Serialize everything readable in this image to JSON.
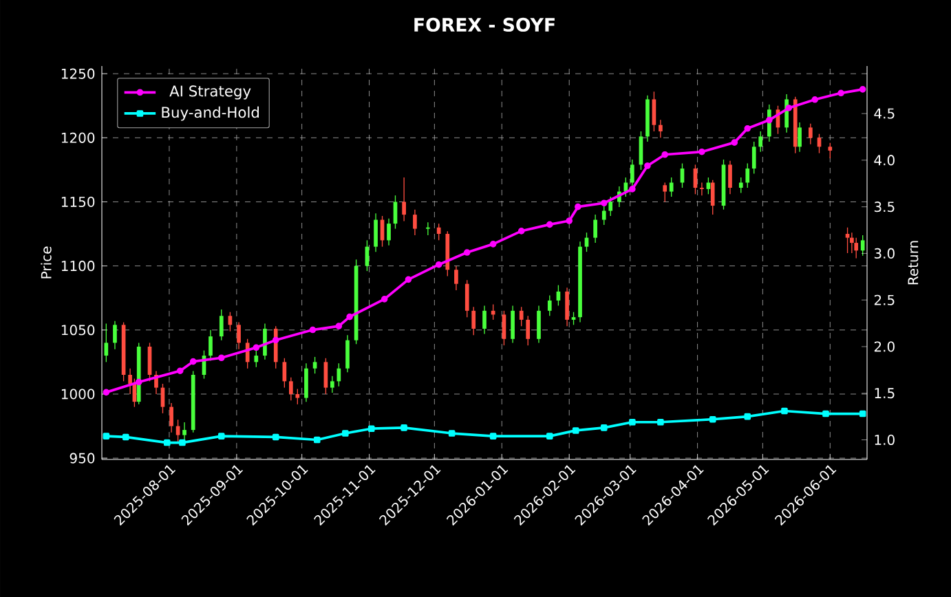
{
  "chart_data": {
    "type": "candlestick",
    "title": "FOREX - SOYF",
    "ylabel": "Price",
    "y2label": "Return",
    "xlim": [
      "2025-07-01",
      "2026-06-18"
    ],
    "xticks": [
      "2025-08-01",
      "2025-09-01",
      "2025-10-01",
      "2025-11-01",
      "2025-12-01",
      "2026-01-01",
      "2026-02-01",
      "2026-03-01",
      "2026-04-01",
      "2026-05-01",
      "2026-06-01"
    ],
    "ylim": [
      949,
      1256
    ],
    "yticks": [
      950,
      1000,
      1050,
      1100,
      1150,
      1200,
      1250
    ],
    "y2lim": [
      0.79,
      5.01
    ],
    "y2ticks": [
      {
        "value": 1,
        "label": "1.0"
      },
      1.5,
      {
        "value": 2,
        "label": "2.0"
      },
      2.5,
      {
        "value": 3,
        "label": "3.0"
      },
      3.5,
      {
        "value": 4,
        "label": "4.0"
      },
      4.5
    ],
    "grid": true,
    "legend": "top left",
    "x": [
      "2025-07-03",
      "2025-07-07",
      "2025-07-11",
      "2025-07-14",
      "2025-07-16",
      "2025-07-18",
      "2025-07-23",
      "2025-07-26",
      "2025-07-29",
      "2025-08-02",
      "2025-08-05",
      "2025-08-08",
      "2025-08-12",
      "2025-08-17",
      "2025-08-20",
      "2025-08-25",
      "2025-08-29",
      "2025-09-02",
      "2025-09-06",
      "2025-09-10",
      "2025-09-14",
      "2025-09-19",
      "2025-09-23",
      "2025-09-26",
      "2025-09-29",
      "2025-10-03",
      "2025-10-07",
      "2025-10-12",
      "2025-10-15",
      "2025-10-18",
      "2025-10-22",
      "2025-10-26",
      "2025-10-31",
      "2025-11-04",
      "2025-11-07",
      "2025-11-10",
      "2025-11-13",
      "2025-11-17",
      "2025-11-22",
      "2025-11-28",
      "2025-12-03",
      "2025-12-07",
      "2025-12-11",
      "2025-12-16",
      "2025-12-19",
      "2025-12-24",
      "2025-12-28",
      "2026-01-02",
      "2026-01-06",
      "2026-01-10",
      "2026-01-13",
      "2026-01-18",
      "2026-01-23",
      "2026-01-27",
      "2026-01-31",
      "2026-02-03",
      "2026-02-06",
      "2026-02-09",
      "2026-02-13",
      "2026-02-17",
      "2026-02-20",
      "2026-02-24",
      "2026-02-27",
      "2026-03-02",
      "2026-03-06",
      "2026-03-09",
      "2026-03-12",
      "2026-03-15",
      "2026-03-17",
      "2026-03-20",
      "2026-03-25",
      "2026-03-31",
      "2026-04-03",
      "2026-04-06",
      "2026-04-08",
      "2026-04-13",
      "2026-04-16",
      "2026-04-21",
      "2026-04-24",
      "2026-04-27",
      "2026-04-30",
      "2026-05-04",
      "2026-05-08",
      "2026-05-12",
      "2026-05-16",
      "2026-05-18",
      "2026-05-23",
      "2026-05-27",
      "2026-06-01",
      "2026-06-09",
      "2026-06-11",
      "2026-06-13",
      "2026-06-16"
    ],
    "ohlc": [
      [
        1030,
        1055,
        1025,
        1040
      ],
      [
        1040,
        1057,
        1035,
        1054
      ],
      [
        1054,
        1056,
        1010,
        1015
      ],
      [
        1015,
        1020,
        1000,
        1008
      ],
      [
        1008,
        1012,
        990,
        994
      ],
      [
        994,
        1040,
        992,
        1037
      ],
      [
        1037,
        1040,
        1010,
        1015
      ],
      [
        1015,
        1018,
        1000,
        1005
      ],
      [
        1005,
        1008,
        985,
        990
      ],
      [
        990,
        993,
        970,
        975
      ],
      [
        975,
        980,
        962,
        968
      ],
      [
        968,
        978,
        962,
        972
      ],
      [
        972,
        1018,
        970,
        1015
      ],
      [
        1015,
        1034,
        1012,
        1030
      ],
      [
        1030,
        1050,
        1026,
        1045
      ],
      [
        1045,
        1066,
        1042,
        1061
      ],
      [
        1061,
        1064,
        1049,
        1054
      ],
      [
        1054,
        1056,
        1035,
        1040
      ],
      [
        1040,
        1043,
        1020,
        1025
      ],
      [
        1025,
        1034,
        1021,
        1030
      ],
      [
        1030,
        1055,
        1027,
        1051
      ],
      [
        1051,
        1053,
        1020,
        1025
      ],
      [
        1025,
        1028,
        1005,
        1010
      ],
      [
        1010,
        1013,
        995,
        1000
      ],
      [
        1000,
        1004,
        992,
        997
      ],
      [
        997,
        1024,
        994,
        1020
      ],
      [
        1020,
        1029,
        1016,
        1025
      ],
      [
        1025,
        1028,
        1000,
        1005
      ],
      [
        1005,
        1014,
        1001,
        1010
      ],
      [
        1010,
        1024,
        1006,
        1020
      ],
      [
        1020,
        1046,
        1017,
        1042
      ],
      [
        1042,
        1105,
        1039,
        1100
      ],
      [
        1100,
        1120,
        1096,
        1115
      ],
      [
        1115,
        1141,
        1111,
        1136
      ],
      [
        1136,
        1139,
        1115,
        1120
      ],
      [
        1120,
        1137,
        1116,
        1133
      ],
      [
        1133,
        1155,
        1129,
        1150
      ],
      [
        1150,
        1169,
        1135,
        1140
      ],
      [
        1140,
        1144,
        1124,
        1129
      ],
      [
        1129,
        1134,
        1124,
        1130
      ],
      [
        1130,
        1133,
        1120,
        1125
      ],
      [
        1125,
        1127,
        1092,
        1097
      ],
      [
        1097,
        1100,
        1081,
        1086
      ],
      [
        1086,
        1089,
        1060,
        1065
      ],
      [
        1065,
        1068,
        1046,
        1051
      ],
      [
        1051,
        1069,
        1047,
        1065
      ],
      [
        1065,
        1070,
        1058,
        1062
      ],
      [
        1062,
        1065,
        1038,
        1043
      ],
      [
        1043,
        1069,
        1040,
        1065
      ],
      [
        1065,
        1068,
        1053,
        1058
      ],
      [
        1058,
        1061,
        1038,
        1043
      ],
      [
        1043,
        1069,
        1040,
        1065
      ],
      [
        1065,
        1077,
        1061,
        1073
      ],
      [
        1073,
        1085,
        1069,
        1080
      ],
      [
        1080,
        1083,
        1053,
        1058
      ],
      [
        1058,
        1064,
        1054,
        1060
      ],
      [
        1060,
        1119,
        1056,
        1115
      ],
      [
        1115,
        1126,
        1111,
        1122
      ],
      [
        1122,
        1140,
        1118,
        1136
      ],
      [
        1136,
        1147,
        1132,
        1143
      ],
      [
        1143,
        1154,
        1139,
        1150
      ],
      [
        1150,
        1162,
        1146,
        1158
      ],
      [
        1158,
        1169,
        1154,
        1165
      ],
      [
        1165,
        1183,
        1161,
        1179
      ],
      [
        1179,
        1205,
        1175,
        1201
      ],
      [
        1201,
        1233,
        1197,
        1230
      ],
      [
        1230,
        1236,
        1205,
        1210
      ],
      [
        1210,
        1214,
        1200,
        1205
      ],
      [
        1163,
        1165,
        1150,
        1158
      ],
      [
        1158,
        1169,
        1154,
        1165
      ],
      [
        1165,
        1180,
        1161,
        1176
      ],
      [
        1176,
        1179,
        1156,
        1161
      ],
      [
        1161,
        1165,
        1155,
        1160
      ],
      [
        1160,
        1169,
        1156,
        1165
      ],
      [
        1165,
        1167,
        1140,
        1147
      ],
      [
        1147,
        1183,
        1144,
        1179
      ],
      [
        1179,
        1182,
        1156,
        1161
      ],
      [
        1161,
        1169,
        1157,
        1165
      ],
      [
        1165,
        1180,
        1161,
        1176
      ],
      [
        1176,
        1197,
        1172,
        1193
      ],
      [
        1193,
        1205,
        1189,
        1201
      ],
      [
        1201,
        1226,
        1197,
        1222
      ],
      [
        1222,
        1225,
        1203,
        1208
      ],
      [
        1208,
        1234,
        1204,
        1230
      ],
      [
        1230,
        1232,
        1188,
        1193
      ],
      [
        1193,
        1212,
        1189,
        1208
      ],
      [
        1208,
        1211,
        1195,
        1200
      ],
      [
        1200,
        1203,
        1188,
        1193
      ],
      [
        1193,
        1196,
        1184,
        1190
      ],
      [
        1125,
        1130,
        1110,
        1122
      ],
      [
        1122,
        1126,
        1110,
        1118
      ],
      [
        1118,
        1122,
        1106,
        1112
      ],
      [
        1112,
        1124,
        1108,
        1120
      ]
    ],
    "series": [
      {
        "name": "AI Strategy",
        "type": "line",
        "axis": "y2",
        "color": "#ff00ff",
        "marker": "circle",
        "x": [
          "2025-07-03",
          "2025-07-18",
          "2025-08-06",
          "2025-08-12",
          "2025-08-25",
          "2025-09-10",
          "2025-09-19",
          "2025-10-06",
          "2025-10-18",
          "2025-10-23",
          "2025-11-08",
          "2025-11-19",
          "2025-12-03",
          "2025-12-16",
          "2025-12-28",
          "2026-01-10",
          "2026-01-23",
          "2026-02-01",
          "2026-02-05",
          "2026-02-17",
          "2026-03-02",
          "2026-03-09",
          "2026-03-17",
          "2026-04-03",
          "2026-04-18",
          "2026-04-24",
          "2026-05-04",
          "2026-05-13",
          "2026-05-25",
          "2026-06-06",
          "2026-06-16"
        ],
        "values": [
          1.51,
          1.62,
          1.74,
          1.84,
          1.88,
          1.99,
          2.07,
          2.18,
          2.22,
          2.32,
          2.51,
          2.72,
          2.88,
          3.01,
          3.1,
          3.24,
          3.31,
          3.35,
          3.5,
          3.54,
          3.69,
          3.94,
          4.06,
          4.09,
          4.19,
          4.34,
          4.43,
          4.56,
          4.65,
          4.72,
          4.76
        ]
      },
      {
        "name": "Buy-and-Hold",
        "type": "line",
        "axis": "y2",
        "color": "#00ffff",
        "marker": "square",
        "x": [
          "2025-07-03",
          "2025-07-12",
          "2025-07-31",
          "2025-08-07",
          "2025-08-25",
          "2025-09-19",
          "2025-10-08",
          "2025-10-21",
          "2025-11-02",
          "2025-11-17",
          "2025-12-09",
          "2025-12-28",
          "2026-01-23",
          "2026-02-04",
          "2026-02-17",
          "2026-03-02",
          "2026-03-15",
          "2026-04-08",
          "2026-04-24",
          "2026-05-11",
          "2026-05-30",
          "2026-06-16"
        ],
        "values": [
          1.04,
          1.03,
          0.97,
          0.97,
          1.04,
          1.03,
          1.0,
          1.07,
          1.12,
          1.13,
          1.07,
          1.04,
          1.04,
          1.1,
          1.13,
          1.19,
          1.19,
          1.22,
          1.25,
          1.31,
          1.28,
          1.28
        ]
      }
    ]
  }
}
